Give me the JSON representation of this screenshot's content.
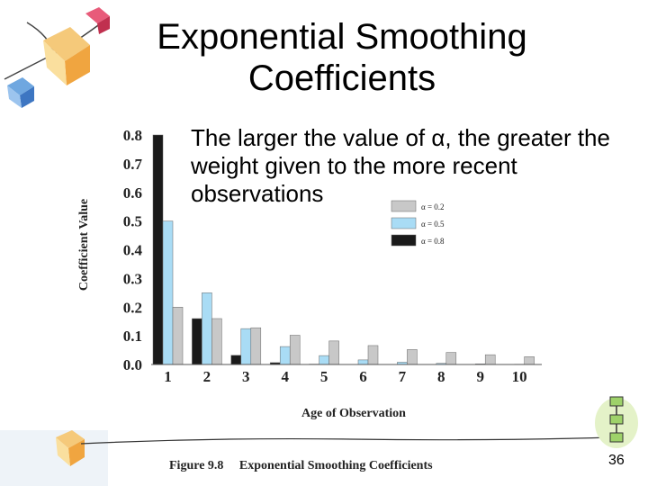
{
  "slide": {
    "title_line1": "Exponential Smoothing",
    "title_line2": "Coefficients",
    "bullet": "The larger the value of α, the greater the weight given to the more recent observations",
    "figure_number": "Figure 9.8",
    "figure_caption": "Exponential Smoothing Coefficients",
    "page_number": "36"
  },
  "chart_data": {
    "type": "bar",
    "xlabel": "Age of Observation",
    "ylabel": "Coefficient Value",
    "ylim": [
      0,
      0.8
    ],
    "yticks": [
      "0.0",
      "0.1",
      "0.2",
      "0.3",
      "0.4",
      "0.5",
      "0.6",
      "0.7",
      "0.8"
    ],
    "categories": [
      "1",
      "2",
      "3",
      "4",
      "5",
      "6",
      "7",
      "8",
      "9",
      "10"
    ],
    "legend_position": "upper-right",
    "grid": false,
    "series": [
      {
        "name": "α = 0.2",
        "color": "#c8c8c8",
        "values": [
          0.2,
          0.16,
          0.128,
          0.102,
          0.082,
          0.066,
          0.052,
          0.042,
          0.034,
          0.027
        ]
      },
      {
        "name": "α = 0.5",
        "color": "#a9dcf5",
        "values": [
          0.5,
          0.25,
          0.125,
          0.0625,
          0.031,
          0.016,
          0.008,
          0.004,
          0.002,
          0.001
        ]
      },
      {
        "name": "α = 0.8",
        "color": "#1a1a1a",
        "values": [
          0.8,
          0.16,
          0.032,
          0.0064,
          0.0013,
          0.0003,
          0.0001,
          0.0,
          0.0,
          0.0
        ]
      }
    ]
  }
}
